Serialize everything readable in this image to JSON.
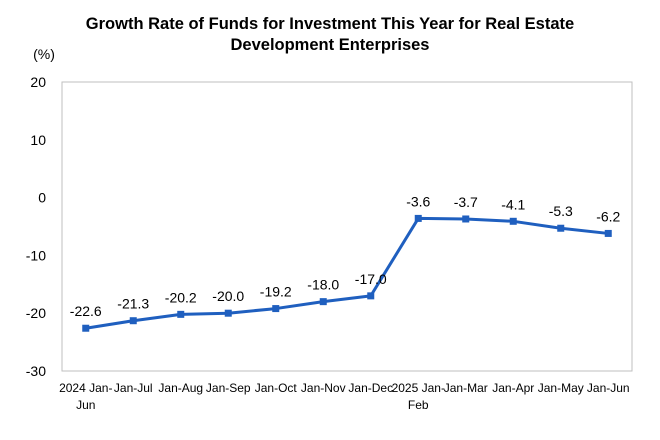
{
  "chart_data": {
    "type": "line",
    "title_line1": "Growth Rate of Funds for Investment This Year for Real Estate",
    "title_line2": "Development Enterprises",
    "ylabel": "(%)",
    "ylim": [
      -30,
      20
    ],
    "yticks": [
      "20",
      "10",
      "0",
      "-10",
      "-20",
      "-30"
    ],
    "grid": false,
    "categories": [
      [
        "2024 Jan-",
        "Jun"
      ],
      [
        "Jan-Jul"
      ],
      [
        "Jan-Aug"
      ],
      [
        "Jan-Sep"
      ],
      [
        "Jan-Oct"
      ],
      [
        "Jan-Nov"
      ],
      [
        "Jan-Dec"
      ],
      [
        "2025 Jan-",
        "Feb"
      ],
      [
        "Jan-Mar"
      ],
      [
        "Jan-Apr"
      ],
      [
        "Jan-May"
      ],
      [
        "Jan-Jun"
      ]
    ],
    "series": [
      {
        "values": [
          -22.6,
          -21.3,
          -20.2,
          -20.0,
          -19.2,
          -18.0,
          -17.0,
          -3.6,
          -3.7,
          -4.1,
          -5.3,
          -6.2
        ],
        "labels": [
          "-22.6",
          "-21.3",
          "-20.2",
          "-20.0",
          "-19.2",
          "-18.0",
          "-17.0",
          "-3.6",
          "-3.7",
          "-4.1",
          "-5.3",
          "-6.2"
        ],
        "color": "#1f5fbf"
      }
    ]
  }
}
